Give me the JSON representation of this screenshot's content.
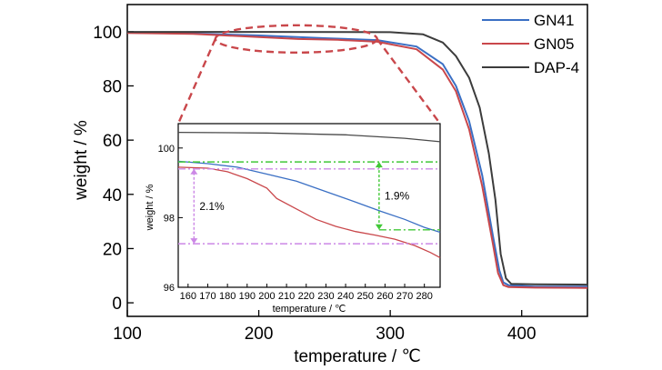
{
  "chart_data": [
    {
      "type": "line",
      "xlabel": "temperature / ℃",
      "ylabel": "weight / %",
      "xlim": [
        100,
        450
      ],
      "ylim": [
        -5,
        110
      ],
      "x_ticks": [
        100,
        200,
        300,
        400
      ],
      "y_ticks": [
        0,
        20,
        40,
        60,
        80,
        100
      ],
      "legend": "top-right",
      "grid": false,
      "series": [
        {
          "name": "GN41",
          "color": "#3a6fc4",
          "points": [
            [
              100,
              99.6
            ],
            [
              150,
              99.3
            ],
            [
              200,
              98.6
            ],
            [
              250,
              97.6
            ],
            [
              290,
              96.9
            ],
            [
              320,
              94.5
            ],
            [
              340,
              88
            ],
            [
              350,
              80
            ],
            [
              360,
              67
            ],
            [
              370,
              47
            ],
            [
              378,
              25
            ],
            [
              383,
              12
            ],
            [
              386,
              7.5
            ],
            [
              390,
              6.5
            ],
            [
              410,
              6.0
            ],
            [
              450,
              6.0
            ]
          ]
        },
        {
          "name": "GN05",
          "color": "#c9474b",
          "points": [
            [
              100,
              99.5
            ],
            [
              150,
              99.2
            ],
            [
              200,
              98.0
            ],
            [
              230,
              97.3
            ],
            [
              260,
              97.0
            ],
            [
              290,
              96.3
            ],
            [
              320,
              93.5
            ],
            [
              340,
              86
            ],
            [
              350,
              78
            ],
            [
              360,
              64
            ],
            [
              370,
              43
            ],
            [
              378,
              22
            ],
            [
              382,
              11
            ],
            [
              386,
              6.5
            ],
            [
              390,
              5.8
            ],
            [
              410,
              5.6
            ],
            [
              450,
              5.5
            ]
          ]
        },
        {
          "name": "DAP-4",
          "color": "#3c3c3c",
          "points": [
            [
              100,
              99.9
            ],
            [
              200,
              99.9
            ],
            [
              300,
              99.8
            ],
            [
              325,
              99
            ],
            [
              340,
              96
            ],
            [
              350,
              91
            ],
            [
              360,
              83
            ],
            [
              368,
              72
            ],
            [
              375,
              55
            ],
            [
              380,
              38
            ],
            [
              384,
              18
            ],
            [
              388,
              9
            ],
            [
              392,
              7
            ],
            [
              410,
              6.8
            ],
            [
              450,
              6.7
            ]
          ]
        }
      ],
      "annotations": [
        {
          "type": "ellipse-zoom",
          "x_range": [
            167,
            290
          ],
          "y": 99
        }
      ]
    },
    {
      "type": "line",
      "xlabel": "temperature / ℃",
      "ylabel": "weight / %",
      "xlim": [
        155,
        288
      ],
      "ylim": [
        96,
        100.7
      ],
      "x_ticks": [
        160,
        170,
        180,
        190,
        200,
        210,
        220,
        230,
        240,
        250,
        260,
        270,
        280
      ],
      "y_ticks": [
        96,
        98,
        100
      ],
      "inset": true,
      "series": [
        {
          "name": "DAP-4",
          "color": "#4a4a4a",
          "points": [
            [
              155,
              100.45
            ],
            [
              200,
              100.43
            ],
            [
              240,
              100.38
            ],
            [
              270,
              100.28
            ],
            [
              288,
              100.18
            ]
          ]
        },
        {
          "name": "GN41",
          "color": "#3a6fc4",
          "points": [
            [
              155,
              99.62
            ],
            [
              170,
              99.55
            ],
            [
              185,
              99.45
            ],
            [
              200,
              99.25
            ],
            [
              215,
              99.05
            ],
            [
              230,
              98.75
            ],
            [
              245,
              98.45
            ],
            [
              258,
              98.18
            ],
            [
              270,
              97.95
            ],
            [
              280,
              97.72
            ],
            [
              288,
              97.58
            ]
          ]
        },
        {
          "name": "GN05",
          "color": "#c9474b",
          "points": [
            [
              155,
              99.45
            ],
            [
              170,
              99.42
            ],
            [
              180,
              99.32
            ],
            [
              190,
              99.12
            ],
            [
              200,
              98.85
            ],
            [
              205,
              98.55
            ],
            [
              215,
              98.25
            ],
            [
              225,
              97.95
            ],
            [
              235,
              97.75
            ],
            [
              245,
              97.6
            ],
            [
              255,
              97.5
            ],
            [
              265,
              97.38
            ],
            [
              275,
              97.2
            ],
            [
              283,
              97.0
            ],
            [
              288,
              96.85
            ]
          ]
        }
      ],
      "annotations": [
        {
          "label": "2.1%",
          "x": 163,
          "y1": 99.4,
          "y2": 97.25,
          "color": "#cc88e6"
        },
        {
          "label": "1.9%",
          "x": 257,
          "y1": 99.6,
          "y2": 97.65,
          "color": "#41c837"
        }
      ]
    }
  ]
}
